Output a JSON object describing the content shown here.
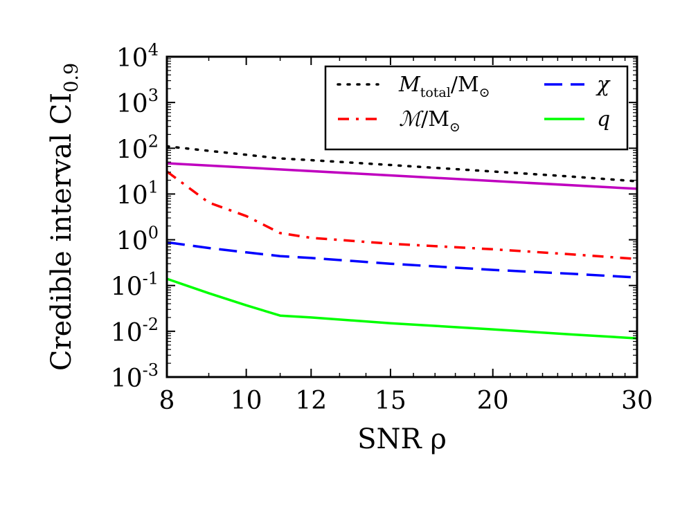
{
  "chart_data": {
    "type": "line",
    "xlabel": "SNR ρ",
    "ylabel": "Credible interval CI",
    "ylabel_subscript": "0.9",
    "xscale": "log",
    "yscale": "log",
    "xlim": [
      8,
      30
    ],
    "ylim": [
      0.001,
      10000
    ],
    "x_ticks": [
      8,
      10,
      12,
      15,
      20,
      30
    ],
    "x_tick_labels": [
      "8",
      "10",
      "12",
      "15",
      "20",
      "30"
    ],
    "y_ticks": [
      0.001,
      0.01,
      0.1,
      1,
      10,
      100,
      1000,
      10000
    ],
    "y_tick_labels": [
      {
        "base": "10",
        "exp": "-3"
      },
      {
        "base": "10",
        "exp": "-2"
      },
      {
        "base": "10",
        "exp": "-1"
      },
      {
        "base": "10",
        "exp": "0"
      },
      {
        "base": "10",
        "exp": "1"
      },
      {
        "base": "10",
        "exp": "2"
      },
      {
        "base": "10",
        "exp": "3"
      },
      {
        "base": "10",
        "exp": "4"
      }
    ],
    "legend_position": "upper-right",
    "series": [
      {
        "name": "M_total/M_sun",
        "legend_main": "M",
        "legend_sub": "total",
        "legend_tail": "/M",
        "legend_sym": "⊙",
        "legend_column": 0,
        "legend_row": 0,
        "style": "dotted",
        "color": "#000000",
        "x": [
          8,
          8.5,
          9,
          10,
          11,
          12,
          15,
          20,
          25,
          30
        ],
        "values": [
          110,
          98,
          88,
          72,
          60,
          55,
          43,
          31,
          24,
          19
        ]
      },
      {
        "name": "chirp mass / M_sun",
        "legend_main": "ℳ",
        "legend_sub": "",
        "legend_tail": "/M",
        "legend_sym": "⊙",
        "legend_column": 0,
        "legend_row": 1,
        "style": "dashdot",
        "color": "#ff0000",
        "x": [
          8,
          9,
          10,
          11,
          12,
          15,
          20,
          25,
          30
        ],
        "values": [
          31,
          6.5,
          3.3,
          1.4,
          1.1,
          0.82,
          0.62,
          0.48,
          0.38
        ]
      },
      {
        "name": "chi",
        "legend_main": "χ",
        "legend_sub": "",
        "legend_tail": "",
        "legend_sym": "",
        "legend_column": 1,
        "legend_row": 0,
        "style": "dashed",
        "color": "#0000ff",
        "x": [
          8,
          9,
          10,
          11,
          12,
          15,
          20,
          25,
          30
        ],
        "values": [
          0.88,
          0.66,
          0.53,
          0.44,
          0.4,
          0.3,
          0.22,
          0.18,
          0.15
        ]
      },
      {
        "name": "q",
        "legend_main": "q",
        "legend_sub": "",
        "legend_tail": "",
        "legend_sym": "",
        "legend_column": 1,
        "legend_row": 1,
        "style": "solid",
        "color": "#00ff00",
        "x": [
          8,
          9,
          10,
          11,
          12,
          15,
          20,
          25,
          30
        ],
        "values": [
          0.14,
          0.068,
          0.037,
          0.022,
          0.02,
          0.015,
          0.011,
          0.0085,
          0.007
        ]
      },
      {
        "name": "unlabeled",
        "legend_main": "",
        "in_legend": false,
        "style": "solid",
        "color": "#bf00bf",
        "x": [
          8,
          30
        ],
        "values": [
          47,
          13
        ]
      }
    ]
  }
}
